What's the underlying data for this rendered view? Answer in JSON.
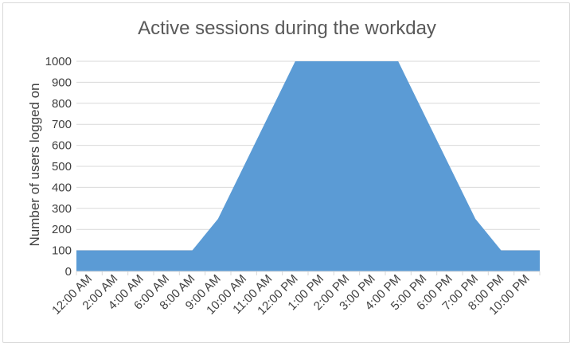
{
  "chart_data": {
    "type": "area",
    "title": "Active sessions during the workday",
    "xlabel": "",
    "ylabel": "Number of users logged on",
    "ylim": [
      0,
      1000
    ],
    "yticks": [
      0,
      100,
      200,
      300,
      400,
      500,
      600,
      700,
      800,
      900,
      1000
    ],
    "grid": true,
    "legend": "none",
    "x_tick_labels": [
      "12:00 AM",
      "2:00 AM",
      "4:00 AM",
      "6:00 AM",
      "8:00 AM",
      "9:00 AM",
      "10:00 AM",
      "11:00 AM",
      "12:00 PM",
      "1:00 PM",
      "2:00 PM",
      "3:00 PM",
      "4:00 PM",
      "5:00 PM",
      "6:00 PM",
      "7:00 PM",
      "8:00 PM",
      "10:00 PM"
    ],
    "series": [
      {
        "color": "#5b9bd5",
        "values": [
          100,
          100,
          100,
          100,
          100,
          250,
          500,
          750,
          1000,
          1000,
          1000,
          1000,
          1000,
          750,
          500,
          250,
          100,
          100
        ]
      }
    ]
  }
}
